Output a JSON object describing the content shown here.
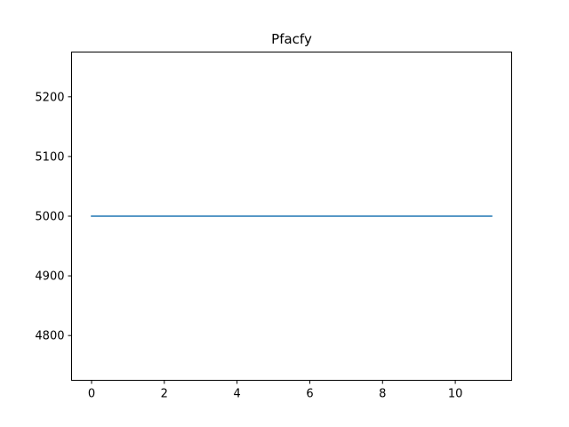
{
  "chart_data": {
    "type": "line",
    "title": "Pfacfy",
    "xlabel": "",
    "ylabel": "",
    "x": [
      0,
      1,
      2,
      3,
      4,
      5,
      6,
      7,
      8,
      9,
      10,
      11
    ],
    "series": [
      {
        "values": [
          5000,
          5000,
          5000,
          5000,
          5000,
          5000,
          5000,
          5000,
          5000,
          5000,
          5000,
          5000
        ],
        "color": "#1f77b4"
      }
    ],
    "xlim": [
      -0.55,
      11.55
    ],
    "ylim": [
      4725,
      5275
    ],
    "xticks": [
      0,
      2,
      4,
      6,
      8,
      10
    ],
    "yticks": [
      4800,
      4900,
      5000,
      5100,
      5200
    ],
    "grid": false
  }
}
